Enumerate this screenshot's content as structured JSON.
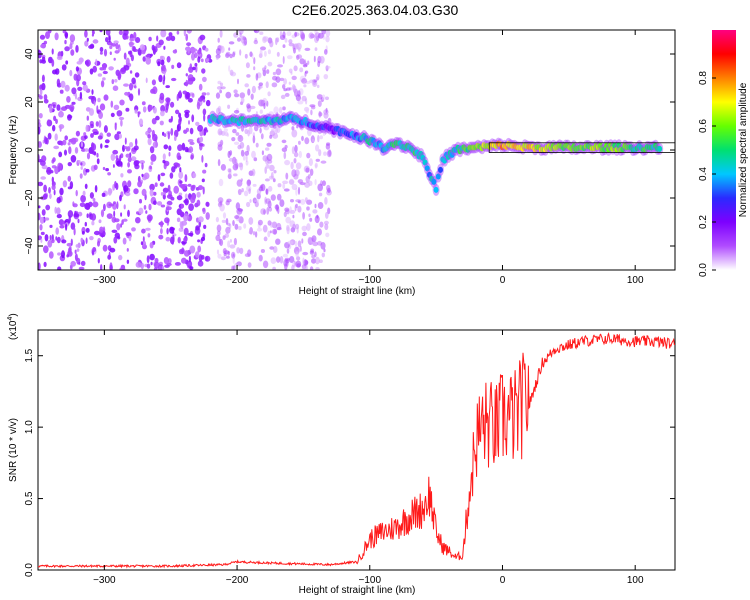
{
  "title": "C2E6.2025.363.04.03.G30",
  "colors": {
    "snr_line": "#ff1a1a",
    "frame": "#000000",
    "band": "#000000"
  },
  "chart_data": [
    {
      "type": "heatmap",
      "xlabel": "Height of straight line (km)",
      "ylabel": "Frequency (Hz)",
      "xlim": [
        -350,
        130
      ],
      "ylim": [
        -50,
        50
      ],
      "x_ticks": [
        -300,
        -200,
        -100,
        0,
        100
      ],
      "y_ticks": [
        -40,
        -20,
        0,
        20,
        40
      ],
      "colorbar": {
        "label": "Normalized spectral amplitude",
        "range": [
          0,
          1
        ],
        "ticks": [
          0.0,
          0.2,
          0.4,
          0.6,
          0.8
        ],
        "colormap": [
          "#ffffff",
          "#b04cff",
          "#7d00ff",
          "#2a2aff",
          "#00c8ff",
          "#00e070",
          "#66ff00",
          "#ffff00",
          "#ff8000",
          "#ff0000",
          "#ff0080"
        ]
      },
      "ridge": [
        {
          "x": -220,
          "f": 13,
          "a": 0.4
        },
        {
          "x": -200,
          "f": 12,
          "a": 0.45
        },
        {
          "x": -180,
          "f": 12,
          "a": 0.42
        },
        {
          "x": -160,
          "f": 13,
          "a": 0.4
        },
        {
          "x": -150,
          "f": 12,
          "a": 0.35
        },
        {
          "x": -130,
          "f": 9,
          "a": 0.25
        },
        {
          "x": -110,
          "f": 6,
          "a": 0.35
        },
        {
          "x": -100,
          "f": 4,
          "a": 0.45
        },
        {
          "x": -90,
          "f": 1,
          "a": 0.4
        },
        {
          "x": -80,
          "f": 3,
          "a": 0.5
        },
        {
          "x": -70,
          "f": 1,
          "a": 0.45
        },
        {
          "x": -60,
          "f": -3,
          "a": 0.5
        },
        {
          "x": -55,
          "f": -10,
          "a": 0.4
        },
        {
          "x": -50,
          "f": -16,
          "a": 0.35
        },
        {
          "x": -45,
          "f": -4,
          "a": 0.35
        },
        {
          "x": -35,
          "f": 0,
          "a": 0.45
        },
        {
          "x": -20,
          "f": 1,
          "a": 0.6
        },
        {
          "x": 0,
          "f": 2,
          "a": 0.75
        },
        {
          "x": 20,
          "f": 1,
          "a": 0.7
        },
        {
          "x": 40,
          "f": 1,
          "a": 0.6
        },
        {
          "x": 60,
          "f": 1,
          "a": 0.6
        },
        {
          "x": 80,
          "f": 1,
          "a": 0.6
        },
        {
          "x": 100,
          "f": 1,
          "a": 0.5
        },
        {
          "x": 120,
          "f": 1,
          "a": 0.5
        }
      ]
    },
    {
      "type": "line",
      "xlabel": "Height of straight line (km)",
      "ylabel": "SNR (10 * v/v)",
      "y_multiplier": "(x10",
      "y_multiplier_exp": "4",
      "y_multiplier_close": ")",
      "xlim": [
        -350,
        130
      ],
      "ylim": [
        0,
        1.68
      ],
      "x_ticks": [
        -300,
        -200,
        -100,
        0,
        100
      ],
      "y_ticks": [
        0.0,
        0.5,
        1.0,
        1.5
      ],
      "y_tick_labels": [
        "0.0",
        "0.5",
        "1.0",
        "1.5"
      ],
      "points": [
        {
          "x": -350,
          "y": 0.02
        },
        {
          "x": -300,
          "y": 0.02
        },
        {
          "x": -250,
          "y": 0.02
        },
        {
          "x": -210,
          "y": 0.03
        },
        {
          "x": -200,
          "y": 0.05
        },
        {
          "x": -170,
          "y": 0.04
        },
        {
          "x": -130,
          "y": 0.03
        },
        {
          "x": -110,
          "y": 0.05
        },
        {
          "x": -105,
          "y": 0.12
        },
        {
          "x": -100,
          "y": 0.2
        },
        {
          "x": -90,
          "y": 0.25
        },
        {
          "x": -80,
          "y": 0.28
        },
        {
          "x": -70,
          "y": 0.35
        },
        {
          "x": -60,
          "y": 0.4
        },
        {
          "x": -55,
          "y": 0.5
        },
        {
          "x": -50,
          "y": 0.25
        },
        {
          "x": -45,
          "y": 0.15
        },
        {
          "x": -40,
          "y": 0.12
        },
        {
          "x": -35,
          "y": 0.08
        },
        {
          "x": -30,
          "y": 0.1
        },
        {
          "x": -25,
          "y": 0.5
        },
        {
          "x": -20,
          "y": 0.85
        },
        {
          "x": -15,
          "y": 0.95
        },
        {
          "x": -10,
          "y": 0.95
        },
        {
          "x": -5,
          "y": 0.92
        },
        {
          "x": 0,
          "y": 1.0
        },
        {
          "x": 10,
          "y": 1.0
        },
        {
          "x": 20,
          "y": 1.15
        },
        {
          "x": 30,
          "y": 1.45
        },
        {
          "x": 40,
          "y": 1.55
        },
        {
          "x": 60,
          "y": 1.6
        },
        {
          "x": 80,
          "y": 1.62
        },
        {
          "x": 100,
          "y": 1.6
        },
        {
          "x": 115,
          "y": 1.6
        },
        {
          "x": 130,
          "y": 1.58
        }
      ]
    }
  ]
}
